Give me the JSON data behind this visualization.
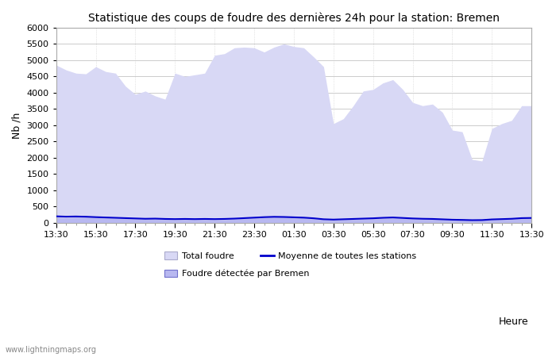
{
  "title": "Statistique des coups de foudre des dernières 24h pour la station: Bremen",
  "xlabel": "Heure",
  "ylabel": "Nb /h",
  "ylim": [
    0,
    6000
  ],
  "yticks": [
    0,
    500,
    1000,
    1500,
    2000,
    2500,
    3000,
    3500,
    4000,
    4500,
    5000,
    5500,
    6000
  ],
  "xtick_labels": [
    "13:30",
    "15:30",
    "17:30",
    "19:30",
    "21:30",
    "23:30",
    "01:30",
    "03:30",
    "05:30",
    "07:30",
    "09:30",
    "11:30",
    "13:30"
  ],
  "background_color": "#ffffff",
  "plot_bg_color": "#ffffff",
  "grid_color": "#cccccc",
  "total_foudre_color": "#d8d8f5",
  "bremen_color": "#b8b8f0",
  "bremen_line_color": "#7070dd",
  "moyenne_color": "#0000cc",
  "watermark": "www.lightningmaps.org",
  "legend": {
    "total_foudre": "Total foudre",
    "moyenne": "Moyenne de toutes les stations",
    "bremen": "Foudre détectée par Bremen"
  },
  "x": [
    0,
    1,
    2,
    3,
    4,
    5,
    6,
    7,
    8,
    9,
    10,
    11,
    12,
    13,
    14,
    15,
    16,
    17,
    18,
    19,
    20,
    21,
    22,
    23,
    24,
    25,
    26,
    27,
    28,
    29,
    30,
    31,
    32,
    33,
    34,
    35,
    36,
    37,
    38,
    39,
    40,
    41,
    42,
    43,
    44,
    45,
    46,
    47,
    48
  ],
  "total_foudre": [
    4850,
    4700,
    4600,
    4580,
    4800,
    4650,
    4600,
    4200,
    3950,
    4050,
    3900,
    3800,
    4600,
    4500,
    4550,
    4600,
    5150,
    5200,
    5380,
    5400,
    5380,
    5250,
    5400,
    5500,
    5420,
    5380,
    5100,
    4800,
    3050,
    3200,
    3600,
    4050,
    4100,
    4300,
    4400,
    4100,
    3700,
    3600,
    3650,
    3400,
    2850,
    2800,
    1950,
    1900,
    2900,
    3050,
    3150,
    3600,
    3600
  ],
  "bremen": [
    180,
    160,
    180,
    170,
    160,
    150,
    140,
    130,
    120,
    110,
    120,
    110,
    100,
    110,
    105,
    110,
    100,
    100,
    120,
    140,
    150,
    170,
    180,
    175,
    165,
    155,
    130,
    100,
    90,
    100,
    110,
    120,
    130,
    140,
    150,
    140,
    125,
    115,
    110,
    100,
    90,
    85,
    75,
    80,
    100,
    110,
    120,
    140,
    145
  ],
  "moyenne": [
    200,
    190,
    195,
    188,
    175,
    165,
    155,
    145,
    135,
    125,
    130,
    120,
    115,
    120,
    115,
    120,
    115,
    120,
    130,
    145,
    160,
    175,
    185,
    180,
    170,
    160,
    140,
    110,
    100,
    110,
    120,
    130,
    140,
    155,
    165,
    150,
    135,
    125,
    120,
    108,
    96,
    90,
    82,
    85,
    105,
    115,
    125,
    145,
    150
  ]
}
